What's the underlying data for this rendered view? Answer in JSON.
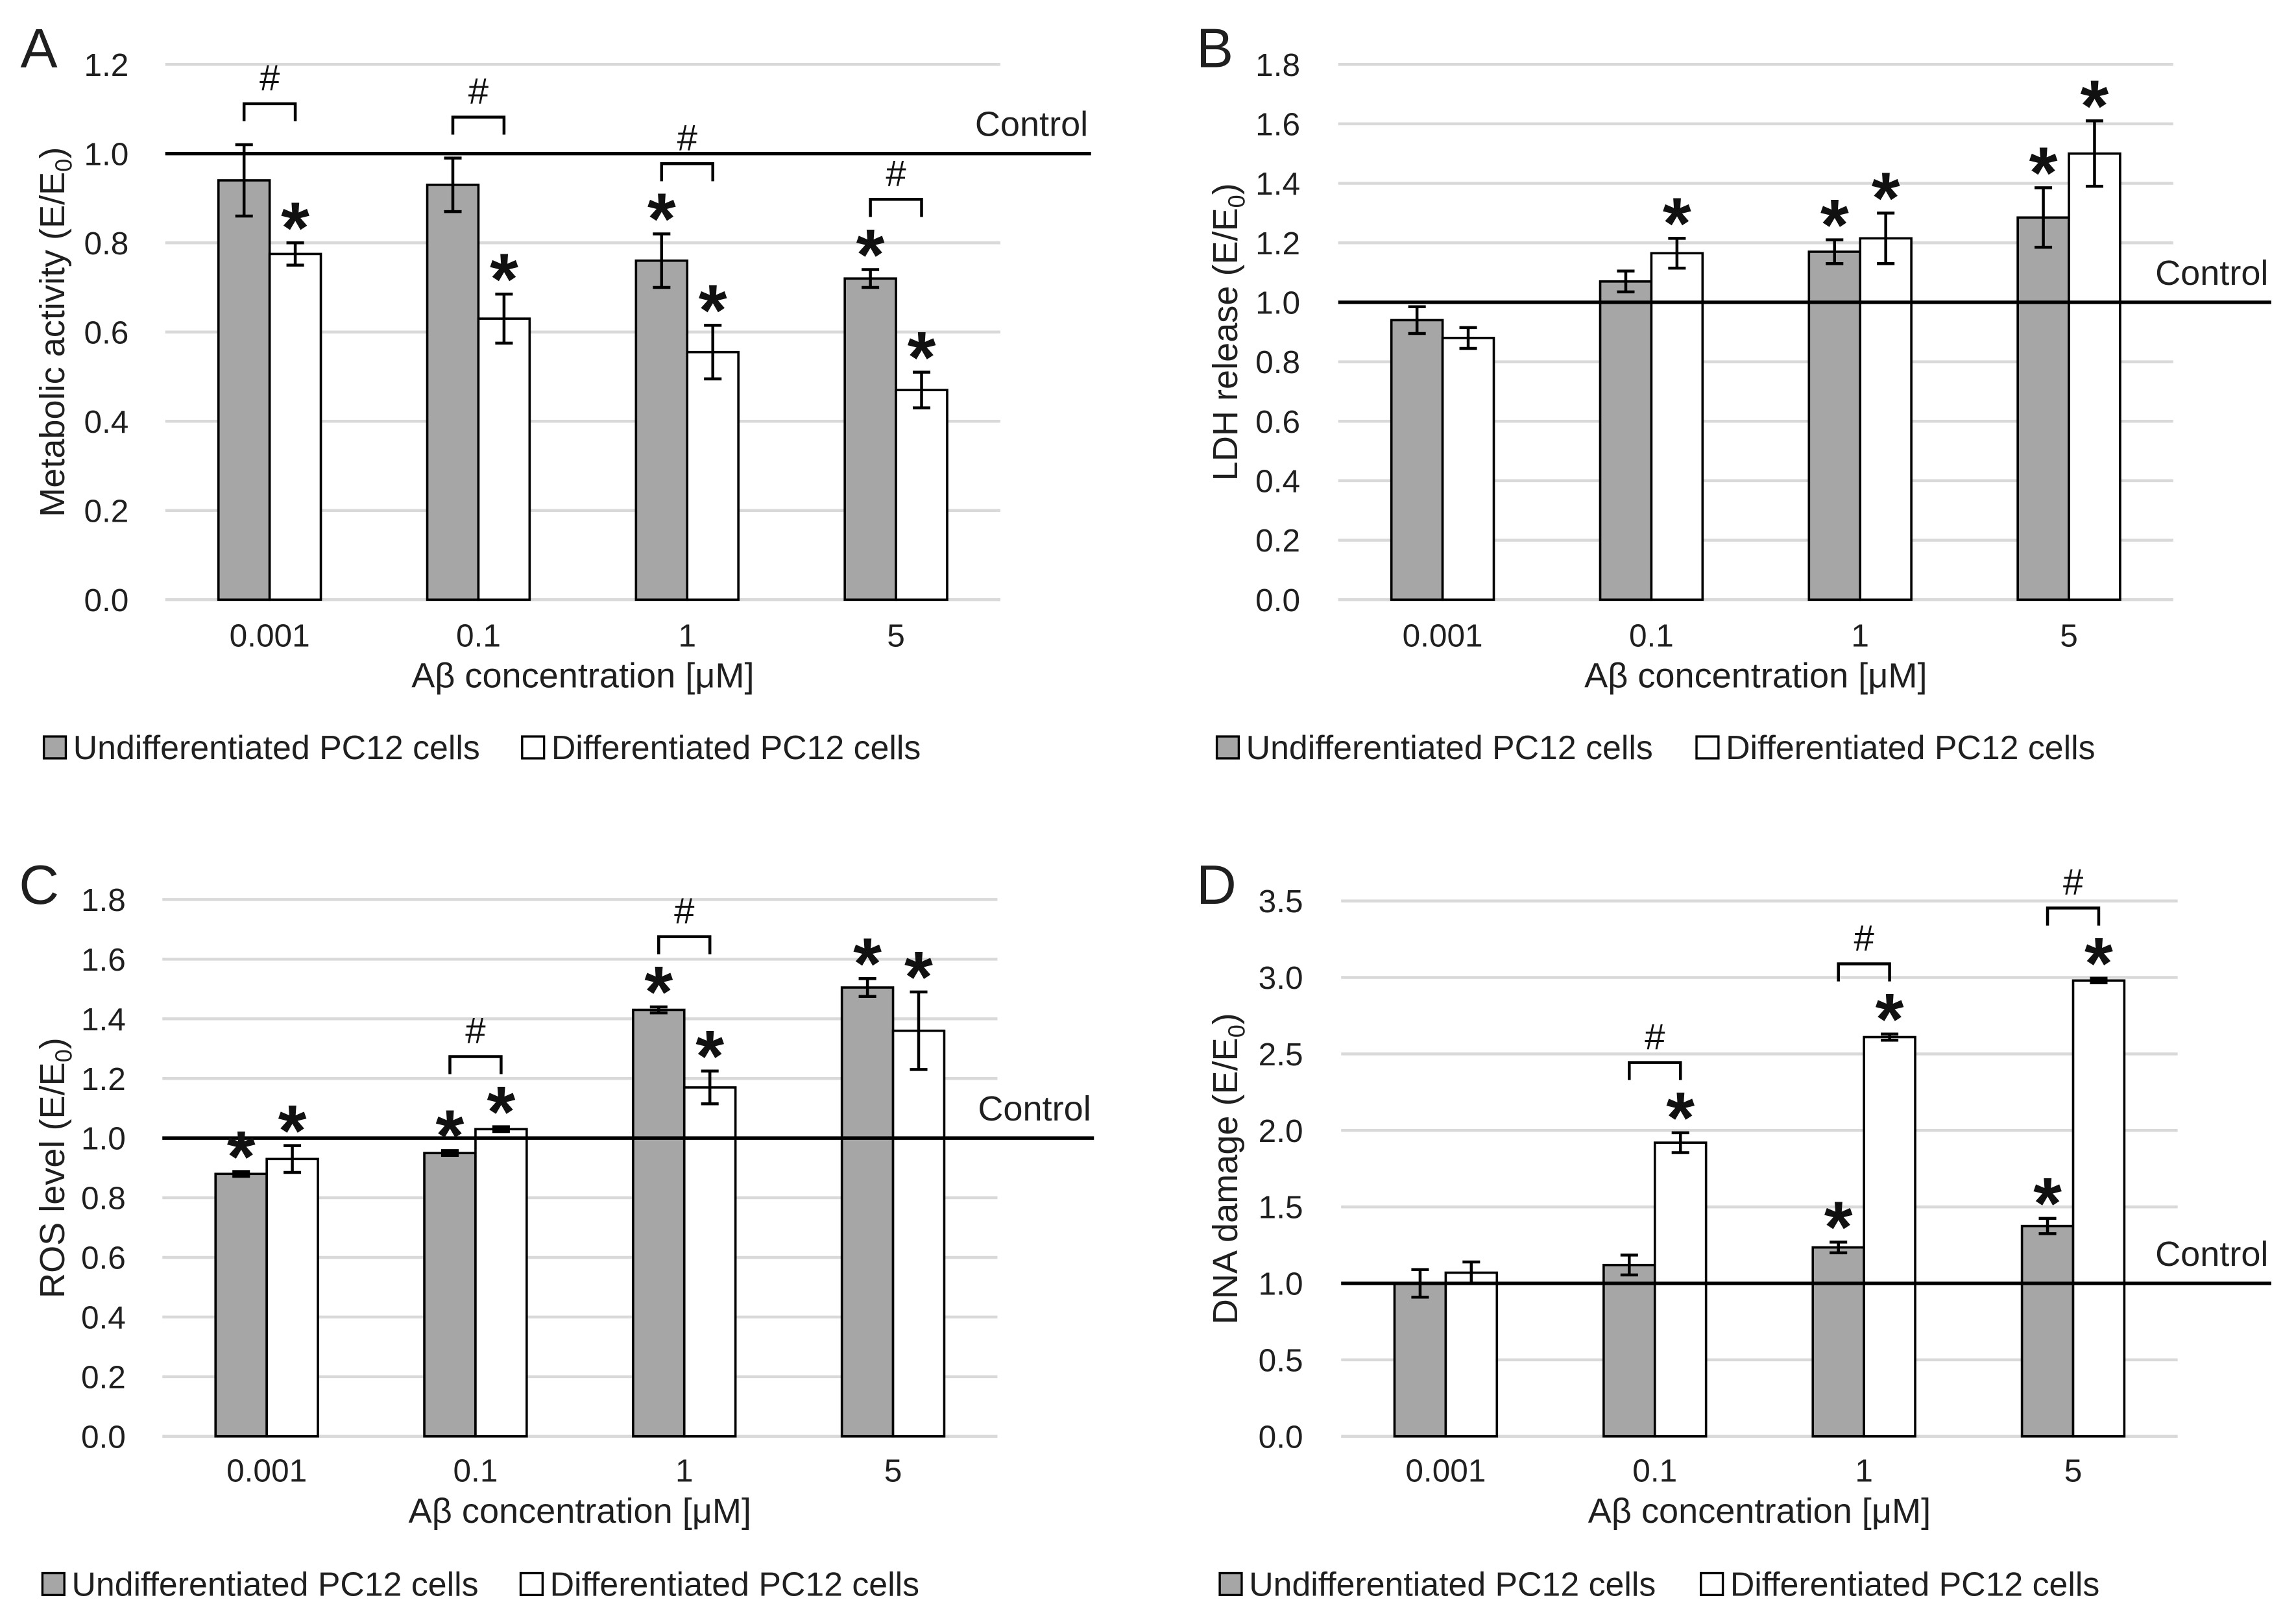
{
  "significance": {
    "vs_control": "*",
    "between_groups": "#"
  },
  "chart_data": [
    {
      "panel": "A",
      "type": "bar",
      "categories": [
        "0.001",
        "0.1",
        "1",
        "5"
      ],
      "xlabel": "Aβ concentration [μM]",
      "ylabel": {
        "text": "Metabolic activity (E/E",
        "sub": "0",
        "suffix": ")"
      },
      "ylim": [
        0,
        1.2
      ],
      "ytick_labels": [
        "0.0",
        "0.2",
        "0.4",
        "0.6",
        "0.8",
        "1.0",
        "1.2"
      ],
      "grid": true,
      "reference_line": {
        "value": 1.0,
        "label": "Control"
      },
      "series": [
        {
          "name": "Undifferentiated PC12 cells",
          "color": "#a6a6a6",
          "values": [
            0.94,
            0.93,
            0.76,
            0.72
          ],
          "errors": [
            0.08,
            0.06,
            0.06,
            0.02
          ],
          "significant_vs_control": [
            false,
            false,
            true,
            true
          ]
        },
        {
          "name": "Differentiated PC12 cells",
          "color": "#ffffff",
          "values": [
            0.775,
            0.63,
            0.555,
            0.47
          ],
          "errors": [
            0.025,
            0.055,
            0.06,
            0.04
          ],
          "significant_vs_control": [
            true,
            true,
            true,
            true
          ]
        }
      ],
      "significant_between_groups": [
        true,
        true,
        true,
        true
      ]
    },
    {
      "panel": "B",
      "type": "bar",
      "categories": [
        "0.001",
        "0.1",
        "1",
        "5"
      ],
      "xlabel": "Aβ concentration [μM]",
      "ylabel": {
        "text": "LDH release (E/E",
        "sub": "0",
        "suffix": ")"
      },
      "ylim": [
        0,
        1.8
      ],
      "ytick_labels": [
        "0.0",
        "0.2",
        "0.4",
        "0.6",
        "0.8",
        "1.0",
        "1.2",
        "1.4",
        "1.6",
        "1.8"
      ],
      "grid": true,
      "reference_line": {
        "value": 1.0,
        "label": "Control"
      },
      "series": [
        {
          "name": "Undifferentiated PC12 cells",
          "color": "#a6a6a6",
          "values": [
            0.94,
            1.07,
            1.17,
            1.285
          ],
          "errors": [
            0.045,
            0.035,
            0.04,
            0.1
          ],
          "significant_vs_control": [
            false,
            false,
            true,
            true
          ]
        },
        {
          "name": "Differentiated PC12 cells",
          "color": "#ffffff",
          "values": [
            0.88,
            1.165,
            1.215,
            1.5
          ],
          "errors": [
            0.035,
            0.05,
            0.085,
            0.11
          ],
          "significant_vs_control": [
            false,
            true,
            true,
            true
          ]
        }
      ],
      "significant_between_groups": [
        false,
        false,
        false,
        false
      ]
    },
    {
      "panel": "C",
      "type": "bar",
      "categories": [
        "0.001",
        "0.1",
        "1",
        "5"
      ],
      "xlabel": "Aβ concentration [μM]",
      "ylabel": {
        "text": "ROS level (E/E",
        "sub": "0",
        "suffix": ")"
      },
      "ylim": [
        0,
        1.8
      ],
      "ytick_labels": [
        "0.0",
        "0.2",
        "0.4",
        "0.6",
        "0.8",
        "1.0",
        "1.2",
        "1.4",
        "1.6",
        "1.8"
      ],
      "grid": true,
      "reference_line": {
        "value": 1.0,
        "label": "Control"
      },
      "series": [
        {
          "name": "Undifferentiated PC12 cells",
          "color": "#a6a6a6",
          "values": [
            0.88,
            0.95,
            1.43,
            1.505
          ],
          "errors": [
            0.008,
            0.008,
            0.01,
            0.03
          ],
          "significant_vs_control": [
            true,
            true,
            true,
            true
          ]
        },
        {
          "name": "Differentiated PC12 cells",
          "color": "#ffffff",
          "values": [
            0.93,
            1.03,
            1.17,
            1.36
          ],
          "errors": [
            0.045,
            0.008,
            0.055,
            0.13
          ],
          "significant_vs_control": [
            true,
            true,
            true,
            true
          ]
        }
      ],
      "significant_between_groups": [
        false,
        true,
        true,
        false
      ]
    },
    {
      "panel": "D",
      "type": "bar",
      "categories": [
        "0.001",
        "0.1",
        "1",
        "5"
      ],
      "xlabel": "Aβ concentration [μM]",
      "ylabel": {
        "text": "DNA damage (E/E",
        "sub": "0",
        "suffix": ")"
      },
      "ylim": [
        0,
        3.5
      ],
      "ytick_labels": [
        "0.0",
        "0.5",
        "1.0",
        "1.5",
        "2.0",
        "2.5",
        "3.0",
        "3.5"
      ],
      "grid": true,
      "reference_line": {
        "value": 1.0,
        "label": "Control"
      },
      "series": [
        {
          "name": "Undifferentiated PC12 cells",
          "color": "#a6a6a6",
          "values": [
            1.0,
            1.12,
            1.235,
            1.375
          ],
          "errors": [
            0.09,
            0.065,
            0.035,
            0.05
          ],
          "significant_vs_control": [
            false,
            false,
            true,
            true
          ]
        },
        {
          "name": "Differentiated PC12 cells",
          "color": "#ffffff",
          "values": [
            1.07,
            1.92,
            2.61,
            2.98
          ],
          "errors": [
            0.07,
            0.065,
            0.02,
            0.015
          ],
          "significant_vs_control": [
            false,
            true,
            true,
            true
          ]
        }
      ],
      "significant_between_groups": [
        false,
        true,
        true,
        true
      ]
    }
  ]
}
